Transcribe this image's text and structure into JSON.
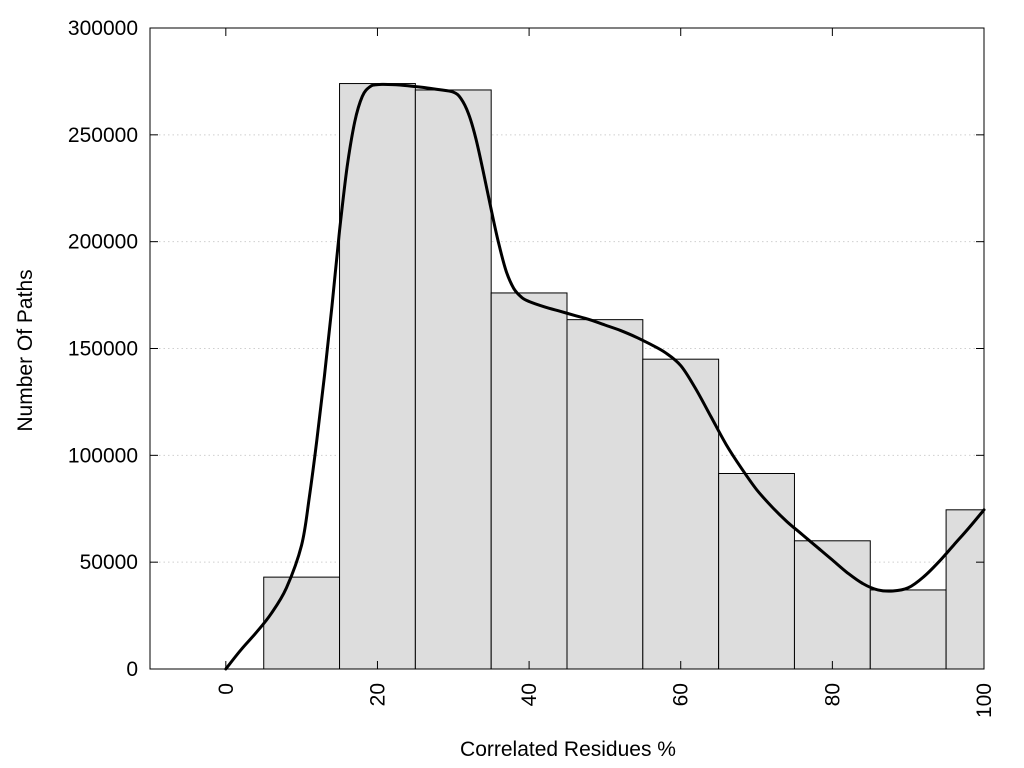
{
  "chart_data": {
    "type": "bar",
    "subtype": "histogram-with-curve",
    "xlabel": "Correlated Residues %",
    "ylabel": "Number Of Paths",
    "xlim": [
      -10,
      100
    ],
    "ylim": [
      0,
      300000
    ],
    "x_ticks": [
      0,
      20,
      40,
      60,
      80,
      100
    ],
    "y_ticks": [
      0,
      50000,
      100000,
      150000,
      200000,
      250000,
      300000
    ],
    "grid": "horizontal-dotted",
    "bin_width": 10,
    "bars": [
      {
        "center": 0,
        "value": 0
      },
      {
        "center": 10,
        "value": 43000
      },
      {
        "center": 20,
        "value": 274000
      },
      {
        "center": 30,
        "value": 271000
      },
      {
        "center": 40,
        "value": 176000
      },
      {
        "center": 50,
        "value": 163500
      },
      {
        "center": 60,
        "value": 145000
      },
      {
        "center": 70,
        "value": 91500
      },
      {
        "center": 80,
        "value": 60000
      },
      {
        "center": 90,
        "value": 37000
      },
      {
        "center": 100,
        "value": 74500
      }
    ],
    "curve": {
      "x": [
        0,
        2,
        4,
        6,
        8,
        10,
        11,
        12,
        13,
        14,
        15,
        16,
        17,
        18,
        19,
        20,
        22,
        24,
        26,
        28,
        30,
        31,
        32,
        33,
        34,
        35,
        36,
        37,
        38,
        39,
        40,
        42,
        44,
        46,
        48,
        50,
        52,
        54,
        56,
        58,
        60,
        62,
        64,
        66,
        68,
        70,
        72,
        74,
        76,
        78,
        80,
        82,
        84,
        86,
        88,
        90,
        92,
        94,
        96,
        98,
        100
      ],
      "y": [
        0,
        9000,
        17000,
        26000,
        38000,
        58000,
        80000,
        107000,
        137000,
        170000,
        205000,
        235000,
        256000,
        268000,
        272500,
        273500,
        273500,
        273000,
        272200,
        271200,
        270000,
        267000,
        260000,
        248000,
        232000,
        215000,
        199000,
        186000,
        178000,
        174000,
        172000,
        169500,
        167500,
        165500,
        163500,
        161000,
        158500,
        155500,
        152000,
        148000,
        142000,
        131000,
        118000,
        105000,
        94000,
        84000,
        76000,
        69000,
        63000,
        57000,
        51000,
        45000,
        40000,
        37000,
        36500,
        38000,
        43000,
        50000,
        58000,
        66000,
        74500
      ]
    },
    "colors": {
      "bar_fill": "#dddddd",
      "bar_stroke": "#000000",
      "curve": "#000000",
      "grid": "#cfcfcf"
    }
  }
}
